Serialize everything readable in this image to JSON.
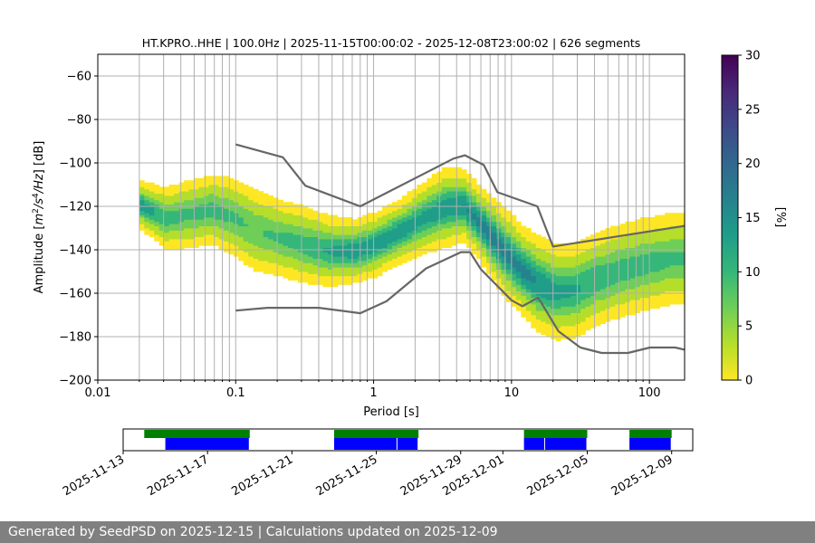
{
  "chart_data": {
    "type": "heatmap",
    "title": "HT.KPRO..HHE | 100.0Hz | 2025-11-15T00:00:02 - 2025-12-08T23:00:02 | 626 segments",
    "xlabel": "Period [s]",
    "ylabel_parts": [
      "Amplitude [",
      "m",
      "2",
      "/",
      "s",
      "4",
      "/",
      "Hz",
      "] [dB]"
    ],
    "x_scale": "log",
    "xlim": [
      0.01,
      180
    ],
    "ylim": [
      -200,
      -50
    ],
    "x_ticks": [
      {
        "value": 0.01,
        "label": "0.01"
      },
      {
        "value": 0.1,
        "label": "0.1"
      },
      {
        "value": 1,
        "label": "1"
      },
      {
        "value": 10,
        "label": "10"
      },
      {
        "value": 100,
        "label": "100"
      }
    ],
    "y_ticks": [
      {
        "value": -60,
        "label": "−60"
      },
      {
        "value": -80,
        "label": "−80"
      },
      {
        "value": -100,
        "label": "−100"
      },
      {
        "value": -120,
        "label": "−120"
      },
      {
        "value": -140,
        "label": "−140"
      },
      {
        "value": -160,
        "label": "−160"
      },
      {
        "value": -180,
        "label": "−180"
      },
      {
        "value": -200,
        "label": "−200"
      }
    ],
    "grid": true,
    "colorbar": {
      "label": "[%]",
      "range": [
        0,
        30
      ],
      "ticks": [
        {
          "value": 0,
          "label": "0"
        },
        {
          "value": 5,
          "label": "5"
        },
        {
          "value": 10,
          "label": "10"
        },
        {
          "value": 15,
          "label": "15"
        },
        {
          "value": 20,
          "label": "20"
        },
        {
          "value": 25,
          "label": "25"
        },
        {
          "value": 30,
          "label": "30"
        }
      ],
      "colormap": "viridis_r",
      "colors": [
        "#fde725",
        "#b5de2b",
        "#6ece58",
        "#35b779",
        "#1f9e89",
        "#26828e",
        "#31688e",
        "#3e4989",
        "#482878",
        "#440154"
      ]
    },
    "ridge": {
      "periods": [
        0.02,
        0.03,
        0.045,
        0.065,
        0.09,
        0.13,
        0.2,
        0.3,
        0.45,
        0.7,
        1.0,
        1.5,
        2.2,
        3.2,
        4.3,
        5.5,
        7,
        9,
        12,
        15,
        20,
        28,
        40,
        60,
        90,
        130,
        180
      ],
      "db": [
        -120,
        -126,
        -124,
        -122,
        -125,
        -131,
        -135,
        -138,
        -141,
        -141,
        -138,
        -132,
        -126,
        -121,
        -120,
        -127,
        -135,
        -143,
        -151,
        -156,
        -160,
        -159,
        -154,
        -150,
        -147,
        -145,
        -144
      ],
      "width_db": [
        6,
        8,
        9,
        9,
        10,
        11,
        10,
        10,
        9,
        8,
        8,
        8,
        9,
        10,
        9,
        9,
        10,
        11,
        11,
        12,
        12,
        12,
        12,
        12,
        12,
        12,
        12
      ],
      "peak_percent": [
        14,
        10,
        9,
        10,
        9,
        8,
        9,
        10,
        12,
        14,
        14,
        14,
        13,
        14,
        15,
        16,
        17,
        16,
        16,
        15,
        13,
        12,
        11,
        10,
        10,
        9,
        9
      ]
    },
    "noise_models": [
      {
        "periods": [
          0.1,
          0.22,
          0.32,
          0.8,
          3.8,
          4.6,
          6.3,
          7.9,
          15.4,
          20,
          180
        ],
        "db": [
          -91.5,
          -97.4,
          -110.5,
          -120,
          -98,
          -96.5,
          -101,
          -113.5,
          -120,
          -138.5,
          -129
        ]
      },
      {
        "periods": [
          0.1,
          0.17,
          0.4,
          0.8,
          1.24,
          2.4,
          4.3,
          5,
          6,
          10,
          12,
          15.6,
          21.9,
          31.6,
          45,
          70,
          101,
          154,
          180
        ],
        "db": [
          -168,
          -166.7,
          -166.7,
          -169.2,
          -163.7,
          -148.6,
          -141.1,
          -141.1,
          -149,
          -163.2,
          -166,
          -162,
          -177.5,
          -185,
          -187.5,
          -187.5,
          -185,
          -185,
          -186
        ]
      }
    ],
    "noise_model_color": "#666666"
  },
  "availability": {
    "x_tick_labels": [
      "2025-11-13",
      "2025-11-17",
      "2025-11-21",
      "2025-11-25",
      "2025-11-29",
      "2025-12-01",
      "2025-12-05",
      "2025-12-09"
    ],
    "x_tick_dates": [
      "2025-11-13",
      "2025-11-17",
      "2025-11-21",
      "2025-11-25",
      "2025-11-29",
      "2025-12-01",
      "2025-12-05",
      "2025-12-09"
    ],
    "date_range": [
      "2025-11-13",
      "2025-12-10"
    ],
    "data_color": "#008000",
    "processed_color": "#0000ff",
    "data_intervals": [
      [
        "2025-11-14",
        "2025-11-19"
      ],
      [
        "2025-11-23",
        "2025-11-27"
      ],
      [
        "2025-12-02",
        "2025-12-05"
      ],
      [
        "2025-12-07",
        "2025-12-09"
      ]
    ],
    "processed_intervals": [
      [
        "2025-11-15",
        "2025-11-19"
      ],
      [
        "2025-11-23",
        "2025-11-26"
      ],
      [
        "2025-11-26",
        "2025-11-27"
      ],
      [
        "2025-12-02",
        "2025-12-03"
      ],
      [
        "2025-12-03",
        "2025-12-05"
      ],
      [
        "2025-12-07",
        "2025-12-09"
      ]
    ]
  },
  "footer": {
    "text": "Generated by SeedPSD on 2025-12-15 | Calculations updated on 2025-12-09"
  }
}
